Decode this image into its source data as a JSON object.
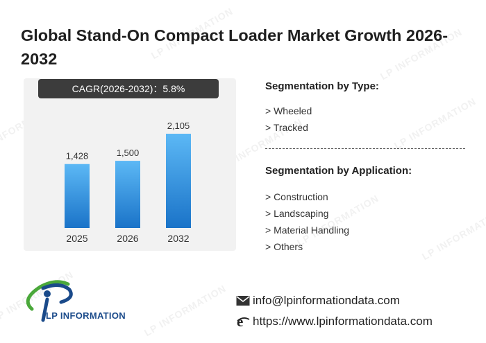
{
  "title": "Global Stand-On Compact Loader Market Growth 2026-2032",
  "cagr_label": "CAGR(2026-2032)：5.8%",
  "chart_data": {
    "type": "bar",
    "categories": [
      "2025",
      "2026",
      "2032"
    ],
    "values": [
      1428,
      1500,
      2105
    ],
    "value_labels": [
      "1,428",
      "1,500",
      "2,105"
    ],
    "title": "Global Stand-On Compact Loader Market Growth 2026-2032",
    "xlabel": "",
    "ylabel": "",
    "ylim": [
      0,
      2600
    ],
    "grid": false,
    "bar_color_top": "#5cb8f5",
    "bar_color_bottom": "#1a73c8"
  },
  "segmentation_type": {
    "title": "Segmentation by Type:",
    "items": [
      "> Wheeled",
      "> Tracked"
    ]
  },
  "segmentation_application": {
    "title": "Segmentation by Application:",
    "items": [
      "> Construction",
      "> Landscaping",
      "> Material Handling",
      "> Others"
    ]
  },
  "logo": {
    "text": "LP INFORMATION"
  },
  "watermark_text": "LP INFORMATION",
  "contact": {
    "email": "info@lpinformationdata.com",
    "website": "https://www.lpinformationdata.com"
  },
  "colors": {
    "brand_blue": "#1a4a8a",
    "brand_green": "#4aa83a",
    "cagr_bg": "#3c3c3c"
  }
}
